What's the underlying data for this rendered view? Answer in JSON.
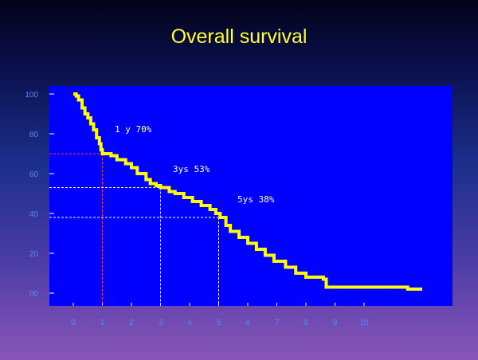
{
  "page": {
    "title": "Overall survival"
  },
  "chart_data": {
    "type": "line",
    "title": "Overall survival",
    "xlabel": "",
    "ylabel": "",
    "x_ticks": [
      "0",
      "1",
      "2",
      "3",
      "4",
      "5",
      "6",
      "7",
      "8",
      "9",
      "10"
    ],
    "y_ticks": [
      "00",
      "20",
      "40",
      "60",
      "80",
      "100"
    ],
    "xlim": [
      0,
      12
    ],
    "ylim": [
      0,
      100
    ],
    "colors": {
      "line": "#ffff00",
      "plot_bg": "#0000ff",
      "guide_red": "#ff3333",
      "guide_white": "#ffffff"
    },
    "series": [
      {
        "x": [
          0,
          0.1,
          0.18,
          0.3,
          0.4,
          0.5,
          0.6,
          0.7,
          0.8,
          0.9,
          0.95,
          1.0,
          1.3,
          1.5,
          1.8,
          2.0,
          2.2,
          2.5,
          2.65,
          2.85,
          3.0,
          3.3,
          3.5,
          3.8,
          4.1,
          4.4,
          4.7,
          4.9,
          5.05,
          5.25,
          5.4,
          5.7,
          6.0,
          6.3,
          6.6,
          6.9,
          7.3,
          7.65,
          8.0,
          8.6,
          8.7,
          10.0,
          11.0,
          11.5,
          12.0
        ],
        "y": [
          100,
          99,
          97,
          93,
          90,
          88,
          85,
          82,
          78,
          75,
          72,
          70,
          69,
          67,
          65,
          63,
          60,
          57,
          55,
          54,
          53,
          51,
          50,
          48,
          46,
          44,
          42,
          40,
          38,
          34,
          31,
          28,
          25,
          22,
          19,
          16,
          13,
          10,
          8,
          7,
          3,
          3,
          3,
          2,
          2
        ]
      }
    ],
    "annotations": [
      {
        "text": "1 y  70%",
        "x": 1,
        "y": 70
      },
      {
        "text": "3ys 53%",
        "x": 3,
        "y": 53
      },
      {
        "text": "5ys 38%",
        "x": 5,
        "y": 38
      }
    ],
    "grid": false,
    "legend": "none"
  }
}
